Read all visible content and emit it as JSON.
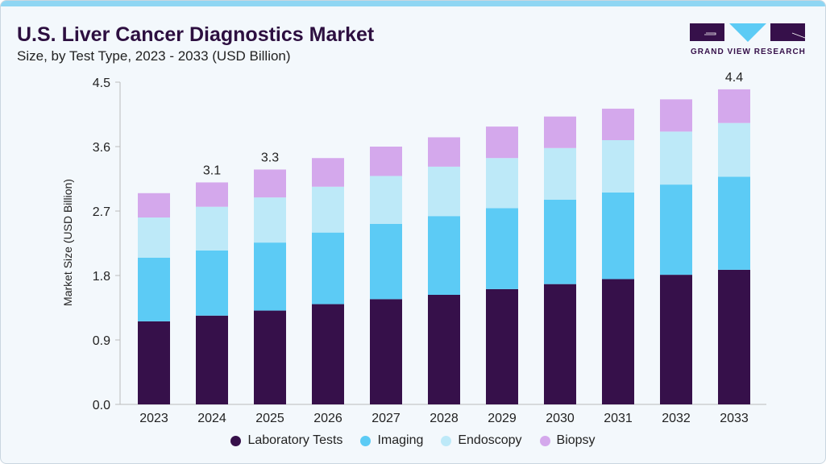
{
  "header": {
    "title": "U.S. Liver Cancer Diagnostics Market",
    "subtitle": "Size, by Test Type, 2023 - 2033 (USD Billion)"
  },
  "logo": {
    "text": "GRAND VIEW RESEARCH"
  },
  "chart_data": {
    "type": "bar",
    "stacked": true,
    "ylabel": "Market Size (USD Billion)",
    "xlabel": "",
    "ylim": [
      0,
      4.5
    ],
    "yticks": [
      "0.0",
      "0.9",
      "1.8",
      "2.7",
      "3.6",
      "4.5"
    ],
    "grid": false,
    "legend": "bottom",
    "categories": [
      "2023",
      "2024",
      "2025",
      "2026",
      "2027",
      "2028",
      "2029",
      "2030",
      "2031",
      "2032",
      "2033"
    ],
    "series": [
      {
        "name": "Laboratory Tests",
        "color": "#36104a",
        "values": [
          1.16,
          1.24,
          1.31,
          1.4,
          1.47,
          1.53,
          1.61,
          1.68,
          1.75,
          1.81,
          1.88
        ]
      },
      {
        "name": "Imaging",
        "color": "#5ccbf5",
        "values": [
          0.89,
          0.91,
          0.95,
          1.0,
          1.05,
          1.1,
          1.13,
          1.18,
          1.21,
          1.26,
          1.3
        ]
      },
      {
        "name": "Endoscopy",
        "color": "#bde9f8",
        "values": [
          0.56,
          0.61,
          0.63,
          0.64,
          0.67,
          0.69,
          0.7,
          0.72,
          0.73,
          0.74,
          0.75
        ]
      },
      {
        "name": "Biopsy",
        "color": "#d4a8ec",
        "values": [
          0.34,
          0.34,
          0.39,
          0.4,
          0.41,
          0.41,
          0.44,
          0.44,
          0.44,
          0.45,
          0.47
        ]
      }
    ],
    "data_labels": [
      {
        "category": "2024",
        "text": "3.1"
      },
      {
        "category": "2025",
        "text": "3.3"
      },
      {
        "category": "2033",
        "text": "4.4"
      }
    ]
  }
}
